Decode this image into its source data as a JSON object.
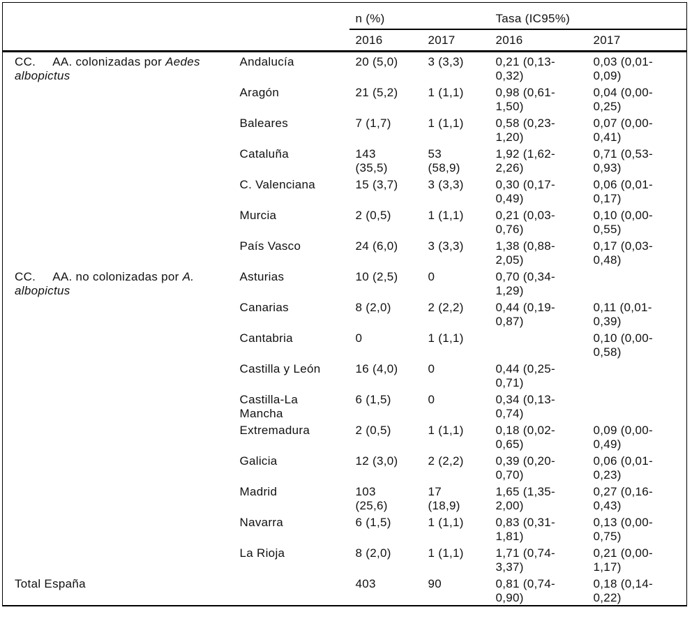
{
  "page": {
    "background": "#ffffff",
    "text_color": "#111111",
    "rule_color": "#000000"
  },
  "table": {
    "column_groups": {
      "n_pct": "n (%)",
      "tasa": "Tasa (IC95%)"
    },
    "year_headers": {
      "n_2016": "2016",
      "n_2017": "2017",
      "tasa_2016": "2016",
      "tasa_2017": "2017"
    },
    "sections": [
      {
        "label": {
          "prefix": "CC.",
          "text": "AA. colonizadas por ",
          "species": "Aedes albopictus"
        },
        "rows": [
          {
            "region": "Andalucía",
            "n2016": "20 (5,0)",
            "n2017": "3 (3,3)",
            "tasa2016": "0,21 (0,13-0,32)",
            "tasa2017": "0,03 (0,01-0,09)"
          },
          {
            "region": "Aragón",
            "n2016": "21 (5,2)",
            "n2017": "1 (1,1)",
            "tasa2016": "0,98 (0,61-1,50)",
            "tasa2017": "0,04 (0,00-0,25)"
          },
          {
            "region": "Baleares",
            "n2016": "7 (1,7)",
            "n2017": "1 (1,1)",
            "tasa2016": "0,58 (0,23-1,20)",
            "tasa2017": "0,07 (0,00-0,41)"
          },
          {
            "region": "Cataluña",
            "n2016": "143 (35,5)",
            "n2017": "53 (58,9)",
            "tasa2016": "1,92 (1,62-2,26)",
            "tasa2017": "0,71 (0,53-0,93)"
          },
          {
            "region": "C. Valenciana",
            "n2016": "15 (3,7)",
            "n2017": "3 (3,3)",
            "tasa2016": "0,30 (0,17-0,49)",
            "tasa2017": "0,06 (0,01-0,17)"
          },
          {
            "region": "Murcia",
            "n2016": "2 (0,5)",
            "n2017": "1 (1,1)",
            "tasa2016": "0,21 (0,03-0,76)",
            "tasa2017": "0,10 (0,00-0,55)"
          },
          {
            "region": "País Vasco",
            "n2016": "24 (6,0)",
            "n2017": "3 (3,3)",
            "tasa2016": "1,38 (0,88-2,05)",
            "tasa2017": "0,17 (0,03-0,48)"
          }
        ]
      },
      {
        "label": {
          "prefix": "CC.",
          "text": "AA. no colonizadas por ",
          "species": "A. albopictus"
        },
        "rows": [
          {
            "region": "Asturias",
            "n2016": "10 (2,5)",
            "n2017": "0",
            "tasa2016": "0,70 (0,34-1,29)",
            "tasa2017": ""
          },
          {
            "region": "Canarias",
            "n2016": "8 (2,0)",
            "n2017": "2 (2,2)",
            "tasa2016": "0,44 (0,19-0,87)",
            "tasa2017": "0,11 (0,01-0,39)"
          },
          {
            "region": "Cantabria",
            "n2016": "0",
            "n2017": "1 (1,1)",
            "tasa2016": "",
            "tasa2017": "0,10 (0,00-0,58)"
          },
          {
            "region": "Castilla y León",
            "n2016": "16 (4,0)",
            "n2017": "0",
            "tasa2016": "0,44 (0,25-0,71)",
            "tasa2017": ""
          },
          {
            "region": "Castilla-La Mancha",
            "n2016": "6 (1,5)",
            "n2017": "0",
            "tasa2016": "0,34 (0,13-0,74)",
            "tasa2017": ""
          },
          {
            "region": "Extremadura",
            "n2016": "2 (0,5)",
            "n2017": "1 (1,1)",
            "tasa2016": "0,18 (0,02-0,65)",
            "tasa2017": "0,09 (0,00-0,49)"
          },
          {
            "region": "Galicia",
            "n2016": "12 (3,0)",
            "n2017": "2 (2,2)",
            "tasa2016": "0,39 (0,20-0,70)",
            "tasa2017": "0,06 (0,01-0,23)"
          },
          {
            "region": "Madrid",
            "n2016": "103 (25,6)",
            "n2017": "17 (18,9)",
            "tasa2016": "1,65 (1,35-2,00)",
            "tasa2017": "0,27 (0,16-0,43)"
          },
          {
            "region": "Navarra",
            "n2016": "6 (1,5)",
            "n2017": "1 (1,1)",
            "tasa2016": "0,83 (0,31-1,81)",
            "tasa2017": "0,13 (0,00-0,75)"
          },
          {
            "region": "La Rioja",
            "n2016": "8 (2,0)",
            "n2017": "1 (1,1)",
            "tasa2016": "1,71 (0,74-3,37)",
            "tasa2017": "0,21 (0,00-1,17)"
          }
        ]
      }
    ],
    "total": {
      "label": "Total España",
      "region": "",
      "n2016": "403",
      "n2017": "90",
      "tasa2016": "0,81 (0,74-0,90)",
      "tasa2017": "0,18 (0,14-0,22)"
    }
  }
}
